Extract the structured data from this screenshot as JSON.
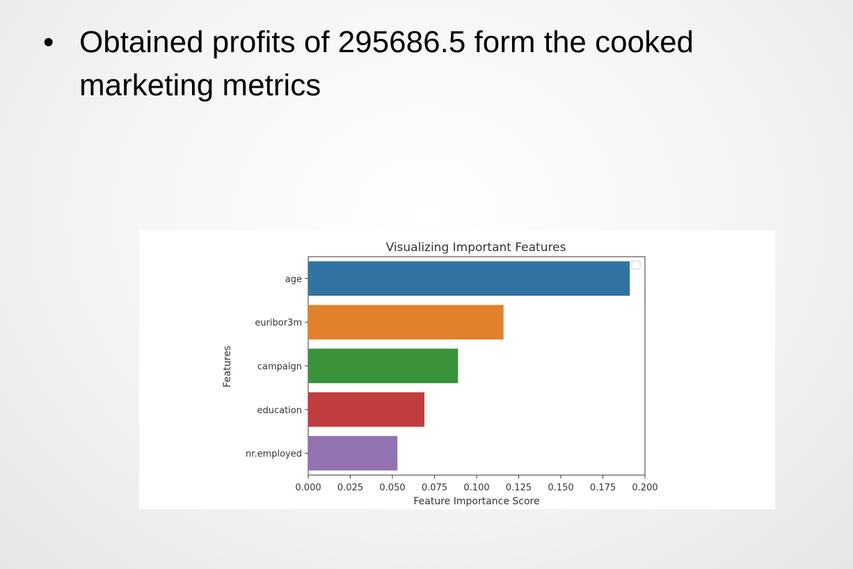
{
  "slide": {
    "bullet_symbol": "•",
    "bullet_text": "Obtained profits of 295686.5 form the cooked marketing metrics"
  },
  "chart_data": {
    "type": "bar",
    "orientation": "horizontal",
    "title": "Visualizing Important Features",
    "xlabel": "Feature Importance Score",
    "ylabel": "Features",
    "categories": [
      "age",
      "euribor3m",
      "campaign",
      "education",
      "nr.employed"
    ],
    "values": [
      0.191,
      0.116,
      0.089,
      0.069,
      0.053
    ],
    "colors": [
      "#3274a1",
      "#e1812c",
      "#3a923a",
      "#c03d3e",
      "#9372b2"
    ],
    "xlim": [
      0,
      0.2
    ],
    "xticks": [
      "0.000",
      "0.025",
      "0.050",
      "0.075",
      "0.100",
      "0.125",
      "0.150",
      "0.175",
      "0.200"
    ],
    "grid": false,
    "legend": "top-right (empty)"
  }
}
